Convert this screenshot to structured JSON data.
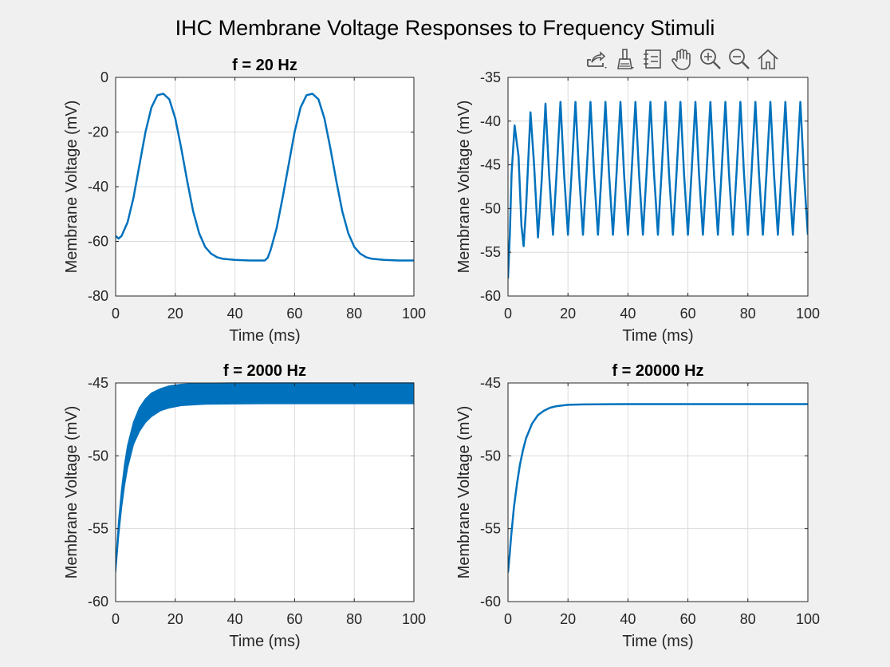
{
  "figure": {
    "title": "IHC Membrane Voltage Responses to Frequency Stimuli"
  },
  "toolbar": {
    "icons": [
      "export-icon",
      "brush-icon",
      "legend-icon",
      "pan-icon",
      "zoom-in-icon",
      "zoom-out-icon",
      "home-icon"
    ]
  },
  "colors": {
    "line": "#0072bd",
    "axes_bg": "#ffffff",
    "figure_bg": "#f0f0f0",
    "grid": "#dcdcdc"
  },
  "chart_data": [
    {
      "type": "line",
      "title": "f = 20 Hz",
      "xlabel": "Time (ms)",
      "ylabel": "Membrane Voltage (mV)",
      "xlim": [
        0,
        100
      ],
      "ylim": [
        -80,
        0
      ],
      "xticks": [
        0,
        20,
        40,
        60,
        80,
        100
      ],
      "yticks": [
        -80,
        -60,
        -40,
        -20,
        0
      ],
      "grid": true,
      "series": [
        {
          "x": [
            0,
            1,
            2,
            4,
            6,
            8,
            10,
            12,
            14,
            16,
            18,
            20,
            22,
            24,
            26,
            28,
            30,
            32,
            34,
            36,
            40,
            45,
            50,
            51,
            52,
            54,
            56,
            58,
            60,
            62,
            64,
            66,
            68,
            70,
            72,
            74,
            76,
            78,
            80,
            82,
            84,
            86,
            90,
            95,
            100
          ],
          "y": [
            -58,
            -59,
            -58,
            -53,
            -44,
            -32,
            -20,
            -11,
            -6.5,
            -6,
            -8,
            -15,
            -26,
            -38,
            -49,
            -57,
            -62,
            -64.5,
            -65.8,
            -66.4,
            -66.8,
            -67,
            -67,
            -66,
            -63,
            -55,
            -44,
            -32,
            -20,
            -11,
            -6.5,
            -6,
            -8,
            -15,
            -26,
            -38,
            -49,
            -57,
            -62,
            -64.5,
            -65.8,
            -66.4,
            -66.8,
            -67,
            -67
          ]
        }
      ]
    },
    {
      "type": "line",
      "title": "",
      "xlabel": "Time (ms)",
      "ylabel": "Membrane Voltage (mV)",
      "xlim": [
        0,
        100
      ],
      "ylim": [
        -60,
        -35
      ],
      "xticks": [
        0,
        20,
        40,
        60,
        80,
        100
      ],
      "yticks": [
        -60,
        -55,
        -50,
        -45,
        -40,
        -35
      ],
      "grid": true,
      "series": [
        {
          "x": [
            0,
            0.6,
            1.2,
            2.2,
            3.5,
            4.5,
            5.2,
            6,
            7.5,
            8.7,
            10,
            11.2,
            12.5,
            13.7,
            15,
            16.2,
            17.5,
            18.7,
            20,
            21.2,
            22.5,
            23.7,
            25,
            26.2,
            27.5,
            28.7,
            30,
            31.2,
            32.5,
            33.7,
            35,
            36.2,
            37.5,
            38.7,
            40,
            41.2,
            42.5,
            43.7,
            45,
            46.2,
            47.5,
            48.7,
            50,
            51.2,
            52.5,
            53.7,
            55,
            56.2,
            57.5,
            58.7,
            60,
            61.2,
            62.5,
            63.7,
            65,
            66.2,
            67.5,
            68.7,
            70,
            71.2,
            72.5,
            73.7,
            75,
            76.2,
            77.5,
            78.7,
            80,
            81.2,
            82.5,
            83.7,
            85,
            86.2,
            87.5,
            88.7,
            90,
            91.2,
            92.5,
            93.7,
            95,
            96.2,
            97.5,
            98.7,
            100
          ],
          "y": [
            -58,
            -53,
            -46,
            -40.5,
            -44,
            -52,
            -54.3,
            -50,
            -39,
            -45,
            -53.3,
            -47,
            -38,
            -46,
            -53,
            -46,
            -37.8,
            -46,
            -53,
            -46,
            -37.8,
            -46,
            -53,
            -46,
            -37.8,
            -46,
            -53,
            -46,
            -37.8,
            -46,
            -53,
            -46,
            -37.8,
            -46,
            -53,
            -46,
            -37.8,
            -46,
            -53,
            -46,
            -37.8,
            -46,
            -53,
            -46,
            -37.8,
            -46,
            -53,
            -46,
            -37.8,
            -46,
            -53,
            -46,
            -37.8,
            -46,
            -53,
            -46,
            -37.8,
            -46,
            -53,
            -46,
            -37.8,
            -46,
            -53,
            -46,
            -37.8,
            -46,
            -53,
            -46,
            -37.8,
            -46,
            -53,
            -46,
            -37.8,
            -46,
            -53,
            -46,
            -37.8,
            -46,
            -53,
            -46,
            -37.8,
            -46,
            -53
          ]
        }
      ]
    },
    {
      "type": "area",
      "title": "f = 2000 Hz",
      "xlabel": "Time (ms)",
      "ylabel": "Membrane Voltage (mV)",
      "xlim": [
        0,
        100
      ],
      "ylim": [
        -60,
        -45
      ],
      "xticks": [
        0,
        20,
        40,
        60,
        80,
        100
      ],
      "yticks": [
        -60,
        -55,
        -50,
        -45
      ],
      "grid": true,
      "series": [
        {
          "x": [
            0,
            1,
            2,
            3,
            4,
            6,
            8,
            10,
            12,
            15,
            18,
            22,
            26,
            30,
            40,
            50,
            60,
            70,
            80,
            90,
            100
          ],
          "y_upper": [
            -57.5,
            -54.5,
            -52.3,
            -50.6,
            -49.3,
            -47.7,
            -46.7,
            -46.1,
            -45.7,
            -45.4,
            -45.2,
            -45.1,
            -45.05,
            -45.02,
            -45,
            -45,
            -45,
            -45,
            -45,
            -45,
            -45
          ],
          "y_lower": [
            -58,
            -55.5,
            -53.5,
            -52,
            -50.8,
            -49.2,
            -48.3,
            -47.7,
            -47.3,
            -46.9,
            -46.7,
            -46.55,
            -46.5,
            -46.45,
            -46.43,
            -46.42,
            -46.42,
            -46.42,
            -46.42,
            -46.42,
            -46.42
          ]
        }
      ]
    },
    {
      "type": "line",
      "title": "f = 20000 Hz",
      "xlabel": "Time (ms)",
      "ylabel": "Membrane Voltage (mV)",
      "xlim": [
        0,
        100
      ],
      "ylim": [
        -60,
        -45
      ],
      "xticks": [
        0,
        20,
        40,
        60,
        80,
        100
      ],
      "yticks": [
        -60,
        -55,
        -50,
        -45
      ],
      "grid": true,
      "series": [
        {
          "x": [
            0,
            0.5,
            1,
            2,
            3,
            4,
            5,
            6,
            8,
            10,
            12,
            14,
            16,
            18,
            20,
            25,
            30,
            40,
            50,
            60,
            70,
            80,
            90,
            100
          ],
          "y": [
            -58,
            -56.9,
            -55.6,
            -53.5,
            -51.9,
            -50.6,
            -49.6,
            -48.8,
            -47.8,
            -47.2,
            -46.9,
            -46.7,
            -46.6,
            -46.55,
            -46.5,
            -46.47,
            -46.46,
            -46.45,
            -46.45,
            -46.45,
            -46.45,
            -46.45,
            -46.45,
            -46.45
          ]
        }
      ]
    }
  ]
}
